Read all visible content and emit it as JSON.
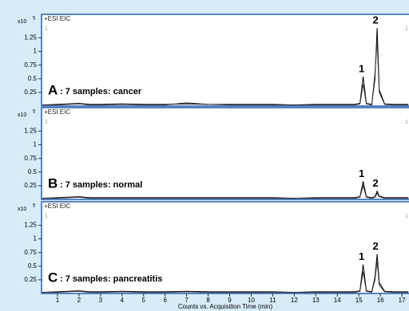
{
  "chart_data": [
    {
      "type": "line",
      "ion_label": "+ESI EIC",
      "corner_label": "1",
      "panel_label": "A",
      "subtitle": ": 7 samples: cancer",
      "y_multiplier": "x10",
      "y_exponent": "5",
      "xlim": [
        0.26,
        17.33
      ],
      "ylim": [
        0,
        1.68
      ],
      "yticks": [
        0.25,
        0.5,
        0.75,
        1,
        1.25
      ],
      "peak_labels": [
        "1",
        "2"
      ],
      "x": [
        0.3,
        1,
        1.5,
        2,
        2.5,
        3,
        4,
        5,
        6,
        7,
        8,
        9,
        10,
        11,
        12,
        13,
        14,
        14.8,
        15.05,
        15.2,
        15.35,
        15.6,
        15.75,
        15.85,
        15.95,
        16.2,
        16.6,
        17,
        17.3
      ],
      "series": [
        {
          "color": "#000000",
          "values": [
            0.02,
            0.03,
            0.04,
            0.05,
            0.03,
            0.03,
            0.04,
            0.03,
            0.03,
            0.04,
            0.03,
            0.03,
            0.03,
            0.03,
            0.02,
            0.03,
            0.03,
            0.03,
            0.05,
            0.54,
            0.05,
            0.03,
            0.5,
            1.43,
            0.3,
            0.04,
            0.03,
            0.03,
            0.03
          ]
        },
        {
          "color": "#333333",
          "values": [
            0.02,
            0.02,
            0.03,
            0.04,
            0.02,
            0.02,
            0.03,
            0.02,
            0.02,
            0.06,
            0.03,
            0.02,
            0.02,
            0.02,
            0.02,
            0.02,
            0.02,
            0.02,
            0.04,
            0.4,
            0.04,
            0.02,
            0.6,
            1.2,
            0.25,
            0.03,
            0.02,
            0.02,
            0.02
          ]
        }
      ]
    },
    {
      "type": "line",
      "ion_label": "+ESI EIC",
      "corner_label": "1",
      "panel_label": "B",
      "subtitle": ": 7 samples: normal",
      "y_multiplier": "x10",
      "y_exponent": "5",
      "xlim": [
        0.26,
        17.33
      ],
      "ylim": [
        0,
        1.68
      ],
      "yticks": [
        0.25,
        0.5,
        0.75,
        1,
        1.25
      ],
      "peak_labels": [
        "1",
        "2"
      ],
      "x": [
        0.3,
        1,
        1.5,
        2,
        2.5,
        3,
        4,
        5,
        6,
        7,
        8,
        9,
        10,
        11,
        12,
        13,
        14,
        14.8,
        15.05,
        15.2,
        15.35,
        15.6,
        15.75,
        15.85,
        15.95,
        16.2,
        16.6,
        17,
        17.3
      ],
      "series": [
        {
          "color": "#000000",
          "values": [
            0.02,
            0.03,
            0.04,
            0.05,
            0.03,
            0.03,
            0.03,
            0.03,
            0.03,
            0.03,
            0.03,
            0.03,
            0.03,
            0.03,
            0.02,
            0.03,
            0.03,
            0.03,
            0.05,
            0.33,
            0.05,
            0.03,
            0.05,
            0.15,
            0.06,
            0.03,
            0.03,
            0.03,
            0.03
          ]
        },
        {
          "color": "#333333",
          "values": [
            0.02,
            0.02,
            0.03,
            0.04,
            0.02,
            0.02,
            0.02,
            0.02,
            0.02,
            0.02,
            0.02,
            0.02,
            0.02,
            0.02,
            0.02,
            0.02,
            0.02,
            0.02,
            0.04,
            0.25,
            0.04,
            0.02,
            0.04,
            0.11,
            0.05,
            0.02,
            0.02,
            0.02,
            0.02
          ]
        }
      ]
    },
    {
      "type": "line",
      "ion_label": "+ESI EIC",
      "corner_label": "1",
      "panel_label": "C",
      "subtitle": ": 7 samples: pancreatitis",
      "y_multiplier": "x10",
      "y_exponent": "5",
      "xlim": [
        0.26,
        17.33
      ],
      "ylim": [
        0,
        1.68
      ],
      "yticks": [
        0.25,
        0.5,
        0.75,
        1,
        1.25
      ],
      "xticks": [
        1,
        2,
        3,
        4,
        5,
        6,
        7,
        8,
        9,
        10,
        11,
        12,
        13,
        14,
        15,
        16,
        17
      ],
      "xlabel": "Counts vs. Acquisition Time (min)",
      "peak_labels": [
        "1",
        "2"
      ],
      "x": [
        0.3,
        1,
        1.5,
        2,
        2.5,
        3,
        4,
        5,
        6,
        7,
        8,
        9,
        10,
        11,
        12,
        13,
        14,
        14.8,
        15.05,
        15.2,
        15.35,
        15.6,
        15.75,
        15.85,
        15.95,
        16.2,
        16.6,
        17,
        17.3
      ],
      "series": [
        {
          "color": "#000000",
          "values": [
            0.02,
            0.03,
            0.04,
            0.05,
            0.03,
            0.03,
            0.04,
            0.03,
            0.03,
            0.04,
            0.03,
            0.03,
            0.03,
            0.03,
            0.02,
            0.03,
            0.03,
            0.03,
            0.05,
            0.53,
            0.05,
            0.03,
            0.3,
            0.72,
            0.2,
            0.04,
            0.03,
            0.03,
            0.03
          ]
        },
        {
          "color": "#333333",
          "values": [
            0.02,
            0.02,
            0.03,
            0.04,
            0.02,
            0.02,
            0.03,
            0.02,
            0.02,
            0.03,
            0.02,
            0.02,
            0.02,
            0.02,
            0.02,
            0.02,
            0.02,
            0.02,
            0.04,
            0.4,
            0.04,
            0.02,
            0.25,
            0.6,
            0.15,
            0.03,
            0.02,
            0.02,
            0.02
          ]
        }
      ]
    }
  ]
}
